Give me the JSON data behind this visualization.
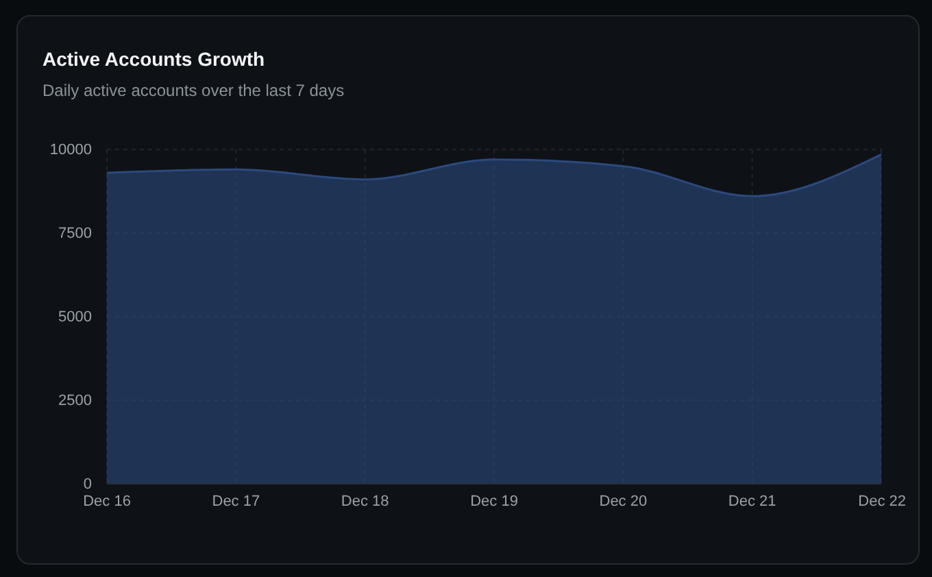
{
  "chart_data": {
    "type": "area",
    "title": "Active Accounts Growth",
    "subtitle": "Daily active accounts over the last 7 days",
    "categories": [
      "Dec 16",
      "Dec 17",
      "Dec 18",
      "Dec 19",
      "Dec 20",
      "Dec 21",
      "Dec 22"
    ],
    "values": [
      9300,
      9400,
      9100,
      9700,
      9500,
      8600,
      9850
    ],
    "color": "#2b4a7e",
    "ylim": [
      0,
      10000
    ],
    "yticks": [
      0,
      2500,
      5000,
      7500,
      10000
    ],
    "grid": true
  }
}
